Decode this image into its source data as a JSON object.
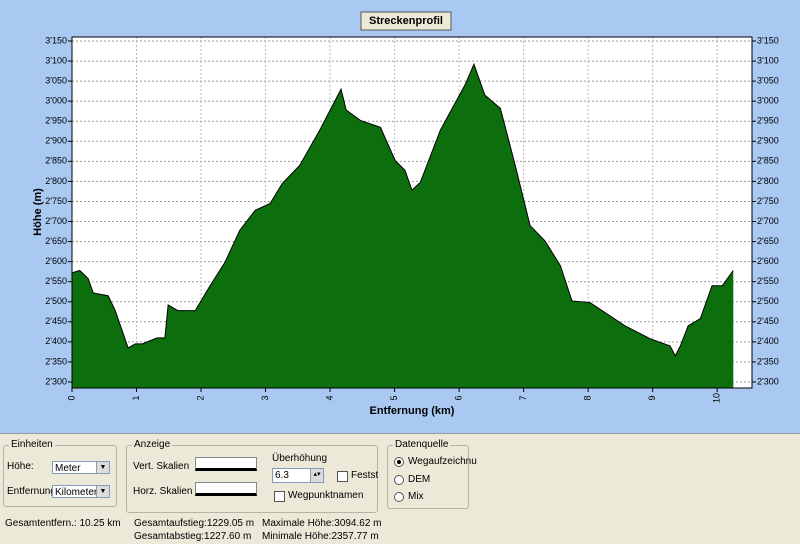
{
  "chart_data": {
    "type": "area",
    "title": "Streckenprofil",
    "x_label": "Entfernung (km)",
    "y_label": "Höhe (m)",
    "color": "#0d6e0d",
    "x": [
      0,
      0.12,
      0.25,
      0.33,
      0.56,
      0.67,
      0.87,
      0.98,
      1.09,
      1.32,
      1.44,
      1.49,
      1.64,
      1.91,
      2.14,
      2.37,
      2.6,
      2.84,
      3.07,
      3.26,
      3.53,
      3.84,
      4.08,
      4.17,
      4.25,
      4.47,
      4.78,
      5.01,
      5.16,
      5.27,
      5.4,
      5.71,
      6.09,
      6.23,
      6.4,
      6.64,
      6.87,
      7.1,
      7.33,
      7.57,
      7.75,
      8.03,
      8.57,
      8.96,
      9.27,
      9.35,
      9.43,
      9.55,
      9.74,
      9.81,
      9.92,
      10.08,
      10.25
    ],
    "values": [
      2572,
      2578,
      2558,
      2522,
      2515,
      2478,
      2385,
      2395,
      2395,
      2410,
      2410,
      2492,
      2478,
      2478,
      2540,
      2598,
      2678,
      2728,
      2745,
      2795,
      2840,
      2928,
      3002,
      3030,
      2978,
      2952,
      2935,
      2852,
      2828,
      2778,
      2798,
      2928,
      3040,
      3092,
      3015,
      2982,
      2840,
      2690,
      2652,
      2590,
      2502,
      2498,
      2440,
      2408,
      2390,
      2365,
      2390,
      2440,
      2458,
      2490,
      2540,
      2540,
      2578
    ],
    "xlim": [
      0,
      10.54
    ],
    "ylim": [
      2285,
      3160
    ],
    "xticks": [
      0,
      1,
      2,
      3,
      4,
      5,
      6,
      7,
      8,
      9,
      10
    ],
    "yticks": [
      {
        "value": 2300,
        "label": "2'300"
      },
      {
        "value": 2350,
        "label": "2'350"
      },
      {
        "value": 2400,
        "label": "2'400"
      },
      {
        "value": 2450,
        "label": "2'450"
      },
      {
        "value": 2500,
        "label": "2'500"
      },
      {
        "value": 2550,
        "label": "2'550"
      },
      {
        "value": 2600,
        "label": "2'600"
      },
      {
        "value": 2650,
        "label": "2'650"
      },
      {
        "value": 2700,
        "label": "2'700"
      },
      {
        "value": 2750,
        "label": "2'750"
      },
      {
        "value": 2800,
        "label": "2'800"
      },
      {
        "value": 2850,
        "label": "2'850"
      },
      {
        "value": 2900,
        "label": "2'900"
      },
      {
        "value": 2950,
        "label": "2'950"
      },
      {
        "value": 3000,
        "label": "3'000"
      },
      {
        "value": 3050,
        "label": "3'050"
      },
      {
        "value": 3100,
        "label": "3'100"
      },
      {
        "value": 3150,
        "label": "3'150"
      }
    ],
    "grid": true
  },
  "panel": {
    "units": {
      "title": "Einheiten",
      "height_label": "Höhe:",
      "height_value": "Meter",
      "distance_label": "Entfernung:",
      "distance_value": "Kilometer"
    },
    "display": {
      "title": "Anzeige",
      "vert": "Vert. Skalien",
      "horz": "Horz. Skalien",
      "exaggeration": "Überhöhung",
      "exaggeration_value": "6.3",
      "fixed": "Festst",
      "waypoints": "Wegpunktnamen"
    },
    "source": {
      "title": "Datenquelle",
      "options": [
        "Wegaufzeichnu",
        "DEM",
        "Mix"
      ]
    },
    "stats": [
      "Gesamtentfern.: 10.25 km",
      "Gesamtaufstieg:1229.05 m",
      "Gesamtabstieg:1227.60 m",
      "Maximale Höhe:3094.62 m",
      "Minimale Höhe:2357.77 m"
    ]
  }
}
